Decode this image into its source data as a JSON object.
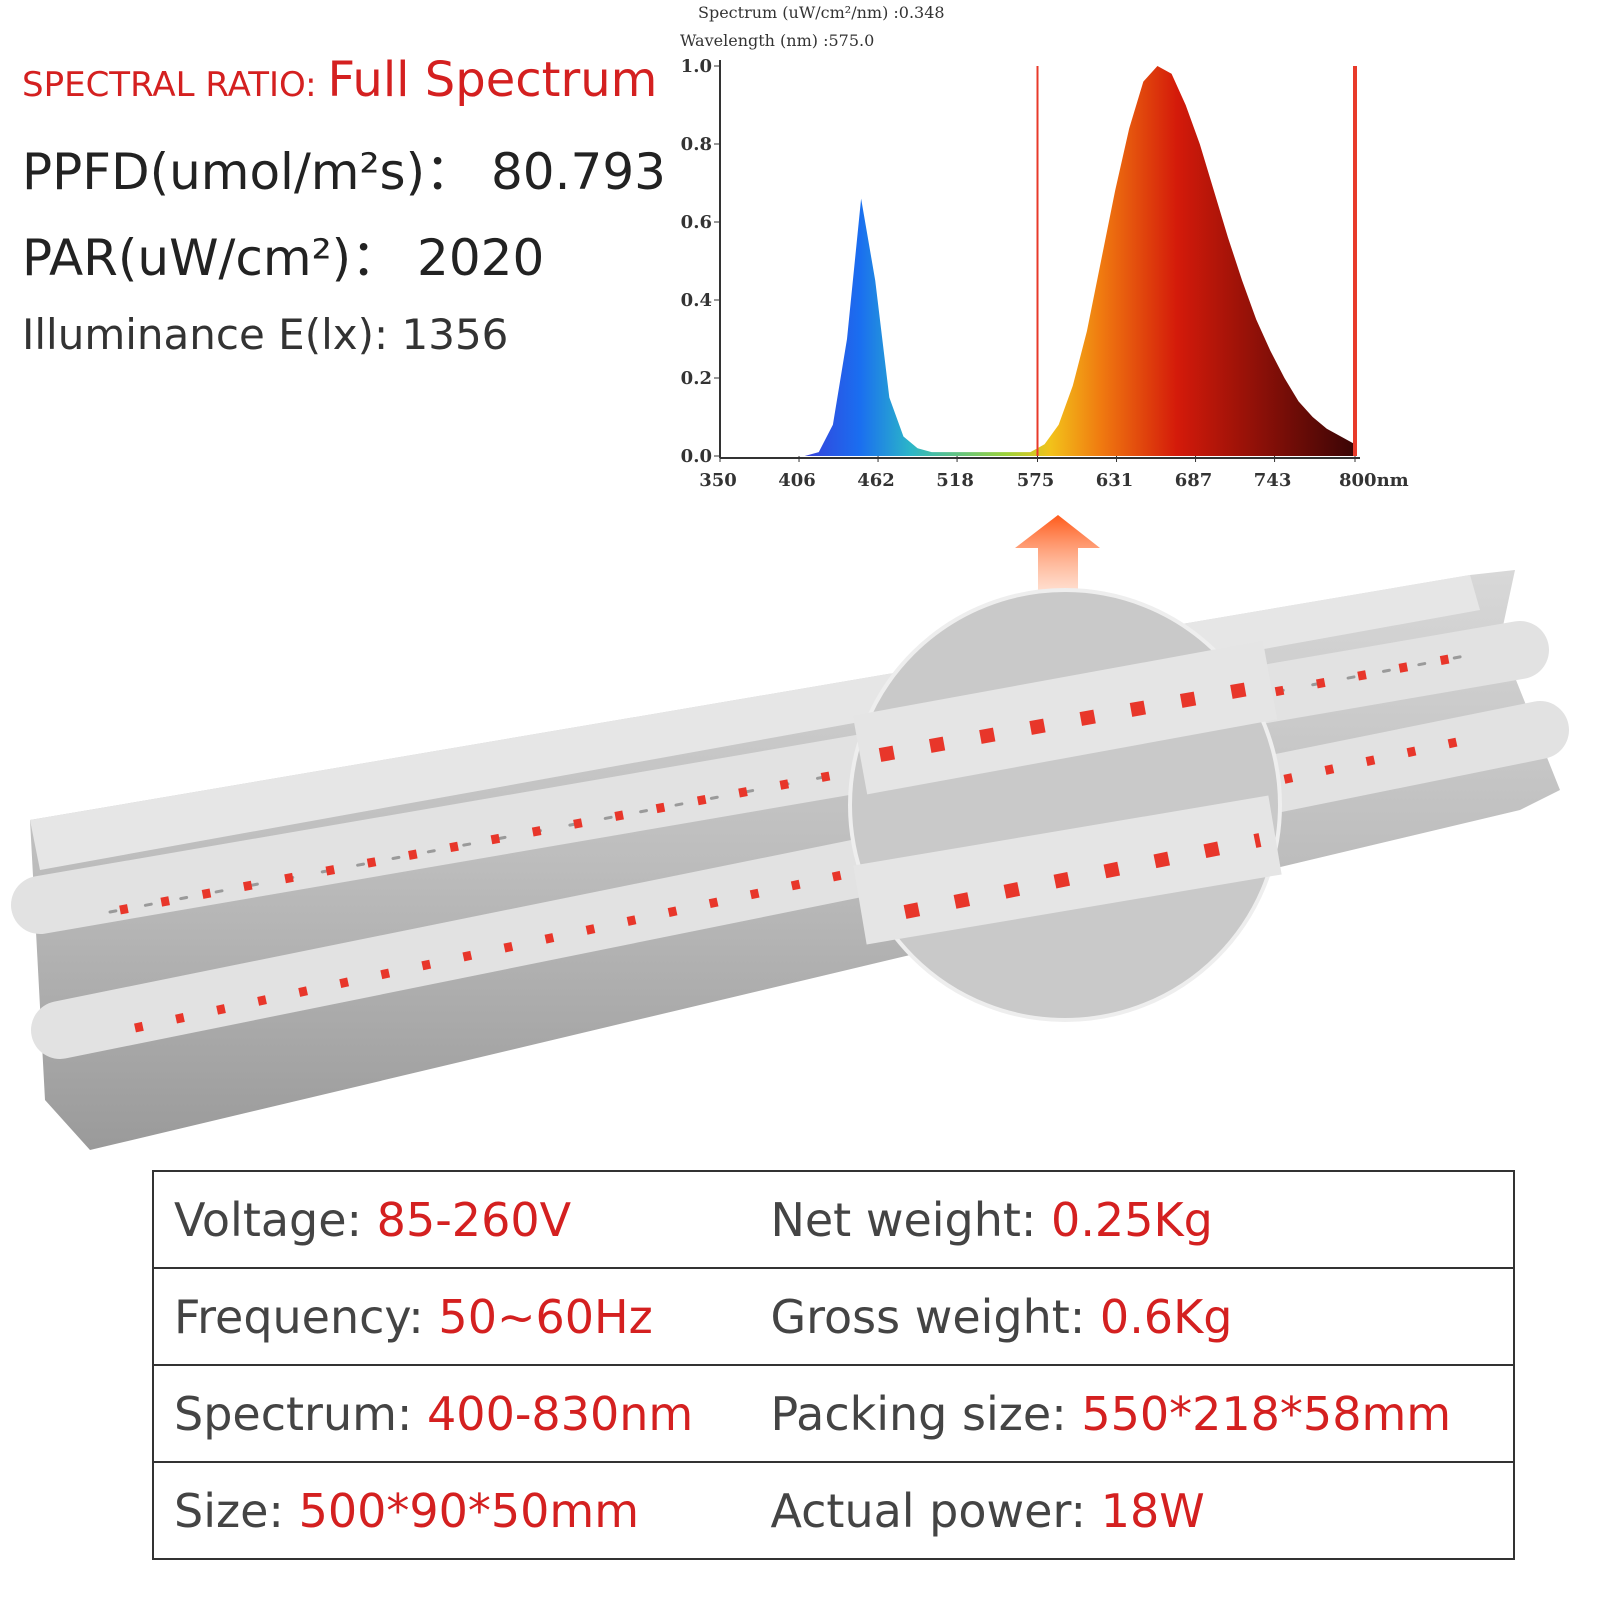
{
  "header": {
    "spectral_ratio_label": "SPECTRAL RATIO:",
    "spectral_ratio_value": "Full Spectrum",
    "ppfd": "PPFD(umol/m²s)：  80.793",
    "par": "PAR(uW/cm²)：  2020",
    "illuminance": "Illuminance E(lx): 1356"
  },
  "chart_data": {
    "type": "area",
    "readout": [
      "Spectrum (uW/cm²/nm) :0.348",
      "Wavelength (nm) :575.0"
    ],
    "x": [
      350,
      360,
      370,
      380,
      390,
      400,
      410,
      420,
      430,
      440,
      450,
      460,
      470,
      480,
      490,
      500,
      510,
      520,
      530,
      540,
      550,
      560,
      570,
      580,
      590,
      600,
      610,
      620,
      630,
      640,
      650,
      660,
      670,
      680,
      690,
      700,
      710,
      720,
      730,
      740,
      750,
      760,
      770,
      780,
      790,
      800
    ],
    "values": [
      0,
      0,
      0,
      0,
      0,
      0,
      0,
      0.01,
      0.08,
      0.3,
      0.66,
      0.45,
      0.15,
      0.05,
      0.02,
      0.01,
      0.01,
      0.01,
      0.01,
      0.01,
      0.01,
      0.01,
      0.01,
      0.03,
      0.08,
      0.18,
      0.32,
      0.5,
      0.68,
      0.84,
      0.96,
      1.0,
      0.98,
      0.9,
      0.8,
      0.68,
      0.56,
      0.45,
      0.35,
      0.27,
      0.2,
      0.14,
      0.1,
      0.07,
      0.05,
      0.03
    ],
    "xlim": [
      350,
      800
    ],
    "xticks": [
      350,
      406,
      462,
      518,
      575,
      631,
      687,
      743,
      {
        "value": 800,
        "label": "800nm"
      }
    ],
    "ylim": [
      0,
      1
    ],
    "yticks": [
      {
        "value": 0,
        "label": "0.0"
      },
      {
        "value": 0.2,
        "label": "0.2"
      },
      {
        "value": 0.4,
        "label": "0.4"
      },
      {
        "value": 0.6,
        "label": "0.6"
      },
      {
        "value": 0.8,
        "label": "0.8"
      },
      {
        "value": 1,
        "label": "1.0"
      }
    ],
    "cursor_lines": [
      575,
      800
    ]
  },
  "specs": {
    "rows": [
      [
        {
          "label": "Voltage:",
          "value": "85-260V"
        },
        {
          "label": "Net weight:",
          "value": "0.25Kg"
        }
      ],
      [
        {
          "label": "Frequency:",
          "value": "50~60Hz"
        },
        {
          "label": "Gross weight:",
          "value": "0.6Kg"
        }
      ],
      [
        {
          "label": "Spectrum:",
          "value": "400-830nm"
        },
        {
          "label": "Packing size:",
          "value": "550*218*58mm"
        }
      ],
      [
        {
          "label": "Size:",
          "value": "500*90*50mm"
        },
        {
          "label": "Actual power:",
          "value": "18W"
        }
      ]
    ]
  }
}
